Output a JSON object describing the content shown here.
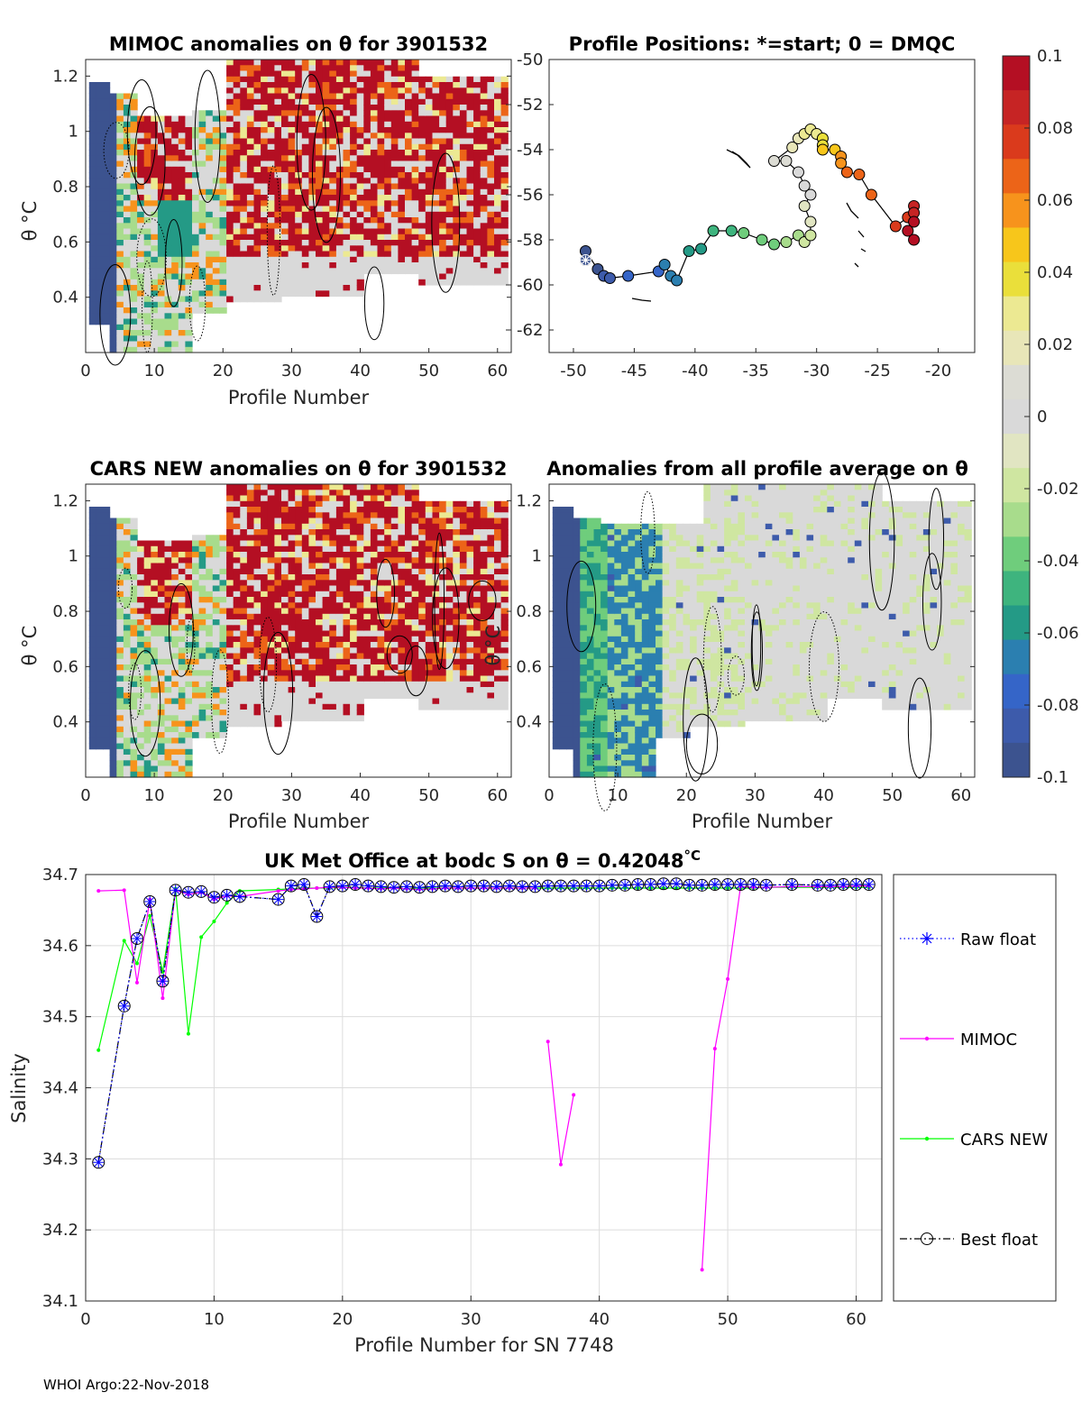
{
  "panels": {
    "mimoc": {
      "title": "MIMOC anomalies on θ  for 3901532",
      "ylabel": "θ °C",
      "xlabel": "Profile Number"
    },
    "positions": {
      "title": "Profile Positions: *=start; 0 = DMQC"
    },
    "cars": {
      "title": "CARS NEW anomalies on θ for 3901532",
      "ylabel": "θ °C",
      "xlabel": "Profile Number"
    },
    "average": {
      "title": "Anomalies from all profile average on θ",
      "ylabel": "θ °C",
      "xlabel": "Profile Number"
    }
  },
  "anomaly_ticks": {
    "profile_x": [
      "0",
      "10",
      "20",
      "30",
      "40",
      "50",
      "60"
    ],
    "theta_y": [
      "1.2",
      "1",
      "0.8",
      "0.6",
      "0.4"
    ],
    "lat_y": [
      "-50",
      "-52",
      "-54",
      "-56",
      "-58",
      "-60",
      "-62"
    ],
    "lon_x": [
      "-50",
      "-45",
      "-40",
      "-35",
      "-30",
      "-25",
      "-20"
    ]
  },
  "colorbar": {
    "labels": [
      "0.1",
      "0.08",
      "0.06",
      "0.04",
      "0.02",
      "0",
      "-0.02",
      "-0.04",
      "-0.06",
      "-0.08",
      "-0.1"
    ],
    "colors": [
      "#b40f23",
      "#c62424",
      "#da3a1c",
      "#ec6418",
      "#f7931c",
      "#f7c61b",
      "#eadf3a",
      "#ece992",
      "#e8e6b8",
      "#dcdcd4",
      "#d9d9d9",
      "#e1e5c2",
      "#cfe6a1",
      "#a8dc8c",
      "#6fcd7c",
      "#3eb47e",
      "#249a86",
      "#2b7fb0",
      "#3565c8",
      "#3d5bab",
      "#3c538f"
    ]
  },
  "chart_data": [
    {
      "type": "heatmap",
      "title": "MIMOC anomalies on θ  for 3901532",
      "xlabel": "Profile Number",
      "ylabel": "θ °C",
      "xlim": [
        0,
        62
      ],
      "ylim": [
        0.2,
        1.26
      ],
      "clim": [
        -0.1,
        0.1
      ],
      "right_axis_ylim": [
        -63,
        -50
      ]
    },
    {
      "type": "scatter",
      "title": "Profile Positions: *=start; 0 = DMQC",
      "xlim": [
        -52,
        -17
      ],
      "ylim": [
        -63,
        -50
      ],
      "x": [
        -49,
        -49,
        -48,
        -47.5,
        -47,
        -45.5,
        -43,
        -42.5,
        -42,
        -41.5,
        -40.5,
        -39.5,
        -38.5,
        -37,
        -36,
        -34.5,
        -33.5,
        -32.5,
        -31.5,
        -31,
        -30.5,
        -30.5,
        -31,
        -30.5,
        -31,
        -31.5,
        -32.5,
        -33.5,
        -32,
        -31.5,
        -31,
        -30.5,
        -30,
        -29.5,
        -29.5,
        -29.5,
        -28.5,
        -28,
        -28,
        -27.5,
        -26.5,
        -25.5,
        -23.5,
        -22.5,
        -22,
        -22,
        -22,
        -22.5,
        -22
      ],
      "y": [
        -58.9,
        -58.5,
        -59.3,
        -59.6,
        -59.7,
        -59.6,
        -59.4,
        -59.1,
        -59.6,
        -59.8,
        -58.5,
        -58.4,
        -57.6,
        -57.6,
        -57.7,
        -58.0,
        -58.2,
        -58.1,
        -57.8,
        -58.1,
        -57.8,
        -57.2,
        -56.5,
        -56.0,
        -55.6,
        -55.0,
        -54.5,
        -54.5,
        -53.9,
        -53.5,
        -53.3,
        -53.1,
        -53.3,
        -53.5,
        -53.8,
        -54.0,
        -54.0,
        -54.3,
        -54.6,
        -55.0,
        -55.1,
        -56.0,
        -57.4,
        -57.0,
        -56.5,
        -56.8,
        -57.2,
        -57.6,
        -58.0
      ],
      "start": [
        -49,
        -58.9
      ]
    },
    {
      "type": "heatmap",
      "title": "CARS NEW anomalies on θ for 3901532",
      "xlabel": "Profile Number",
      "ylabel": "θ °C",
      "xlim": [
        0,
        62
      ],
      "ylim": [
        0.2,
        1.26
      ],
      "clim": [
        -0.1,
        0.1
      ]
    },
    {
      "type": "heatmap",
      "title": "Anomalies from all profile average on θ",
      "xlabel": "Profile Number",
      "ylabel": "θ °C",
      "xlim": [
        0,
        62
      ],
      "ylim": [
        0.2,
        1.26
      ],
      "clim": [
        -0.1,
        0.1
      ]
    },
    {
      "type": "line",
      "title": "UK Met Office at bodc S on θ = 0.42048",
      "title_unit": "°C",
      "xlabel": "Profile Number for SN 7748",
      "ylabel": "Salinity",
      "xlim": [
        0,
        62
      ],
      "ylim": [
        34.1,
        34.7
      ],
      "xticks": [
        "0",
        "10",
        "20",
        "30",
        "40",
        "50",
        "60"
      ],
      "yticks": [
        "34.7",
        "34.6",
        "34.5",
        "34.4",
        "34.3",
        "34.2",
        "34.1"
      ],
      "series": [
        {
          "name": "Raw float",
          "color": "#0000ff",
          "style": "dotted",
          "marker": "star",
          "x": [
            1,
            3,
            4,
            5,
            6,
            7,
            8,
            9,
            10,
            11,
            12,
            15,
            16,
            17,
            18,
            19,
            20,
            21,
            22,
            23,
            24,
            25,
            26,
            27,
            28,
            29,
            30,
            31,
            32,
            33,
            34,
            35,
            36,
            37,
            38,
            39,
            40,
            41,
            42,
            43,
            44,
            45,
            46,
            47,
            48,
            49,
            50,
            51,
            52,
            53,
            55,
            57,
            58,
            59,
            60,
            61
          ],
          "y": [
            34.295,
            34.515,
            34.61,
            34.662,
            34.55,
            34.678,
            34.675,
            34.676,
            34.668,
            34.671,
            34.669,
            34.665,
            34.684,
            34.686,
            34.641,
            34.683,
            34.684,
            34.686,
            34.684,
            34.683,
            34.682,
            34.683,
            34.682,
            34.683,
            34.684,
            34.683,
            34.684,
            34.684,
            34.683,
            34.684,
            34.683,
            34.683,
            34.684,
            34.684,
            34.684,
            34.684,
            34.684,
            34.685,
            34.685,
            34.686,
            34.686,
            34.687,
            34.687,
            34.685,
            34.685,
            34.686,
            34.686,
            34.686,
            34.686,
            34.685,
            34.686,
            34.685,
            34.685,
            34.686,
            34.686,
            34.686
          ]
        },
        {
          "name": "MIMOC",
          "color": "#ff00ff",
          "style": "solid",
          "marker": "dot",
          "x": [
            1,
            3,
            4,
            5,
            6,
            7,
            8,
            9,
            10,
            11,
            12,
            15,
            16,
            17,
            18,
            19,
            20,
            21,
            22,
            23,
            24,
            25,
            26,
            27,
            28,
            29,
            30,
            31,
            32,
            33,
            34,
            35,
            null,
            36,
            37,
            38,
            null,
            48,
            49,
            50,
            51,
            52,
            53,
            55,
            57,
            58,
            59,
            60,
            61
          ],
          "y": [
            34.677,
            34.678,
            34.548,
            34.665,
            34.526,
            34.678,
            34.672,
            34.675,
            34.665,
            34.67,
            34.669,
            34.677,
            34.679,
            34.68,
            34.681,
            34.682,
            34.682,
            34.681,
            34.681,
            34.68,
            34.681,
            34.68,
            34.679,
            34.68,
            34.681,
            34.681,
            34.681,
            34.681,
            34.681,
            34.681,
            34.681,
            34.681,
            null,
            34.465,
            34.292,
            34.39,
            null,
            34.144,
            34.455,
            34.553,
            34.683,
            34.682,
            34.682,
            34.683,
            34.683,
            34.683,
            34.683,
            34.684,
            34.684
          ]
        },
        {
          "name": "CARS NEW",
          "color": "#00ff00",
          "style": "solid",
          "marker": "dot",
          "x": [
            1,
            3,
            4,
            5,
            6,
            7,
            8,
            9,
            10,
            11,
            12,
            15,
            16,
            17,
            18,
            19,
            20,
            21,
            22,
            23,
            24,
            25,
            26,
            27,
            28,
            29,
            30,
            31,
            32,
            33,
            34,
            35,
            36,
            37,
            38,
            39,
            40,
            41,
            42,
            43,
            44,
            45,
            46,
            47,
            48,
            49,
            50,
            51,
            52,
            53,
            55,
            57,
            58,
            59,
            60,
            61
          ],
          "y": [
            34.453,
            34.607,
            34.575,
            34.642,
            34.563,
            34.68,
            34.476,
            34.612,
            34.634,
            34.66,
            34.677,
            34.679,
            34.68,
            34.681,
            34.681,
            34.681,
            34.682,
            34.682,
            34.681,
            34.681,
            34.681,
            34.68,
            34.681,
            34.681,
            34.681,
            34.681,
            34.681,
            34.681,
            34.681,
            34.681,
            34.681,
            34.681,
            34.681,
            34.681,
            34.681,
            34.681,
            34.681,
            34.681,
            34.681,
            34.681,
            34.681,
            34.681,
            34.681,
            34.681,
            34.681,
            34.681,
            34.681,
            34.681,
            34.681,
            34.682,
            34.682,
            34.682,
            34.682,
            34.682,
            34.682,
            34.682
          ]
        },
        {
          "name": "Best float",
          "color": "#000000",
          "style": "dashdot",
          "marker": "circle",
          "x": [
            1,
            3,
            4,
            5,
            6,
            7,
            8,
            9,
            10,
            11,
            12,
            15,
            16,
            17,
            18,
            19,
            20,
            21,
            22,
            23,
            24,
            25,
            26,
            27,
            28,
            29,
            30,
            31,
            32,
            33,
            34,
            35,
            36,
            37,
            38,
            39,
            40,
            41,
            42,
            43,
            44,
            45,
            46,
            47,
            48,
            49,
            50,
            51,
            52,
            53,
            55,
            57,
            58,
            59,
            60,
            61
          ],
          "y": [
            34.295,
            34.515,
            34.61,
            34.662,
            34.55,
            34.678,
            34.675,
            34.676,
            34.668,
            34.671,
            34.669,
            34.665,
            34.684,
            34.686,
            34.641,
            34.683,
            34.684,
            34.686,
            34.684,
            34.683,
            34.682,
            34.683,
            34.682,
            34.683,
            34.684,
            34.683,
            34.684,
            34.684,
            34.683,
            34.684,
            34.683,
            34.683,
            34.684,
            34.684,
            34.684,
            34.684,
            34.684,
            34.685,
            34.685,
            34.686,
            34.686,
            34.687,
            34.687,
            34.685,
            34.685,
            34.686,
            34.686,
            34.686,
            34.686,
            34.685,
            34.686,
            34.685,
            34.685,
            34.686,
            34.686,
            34.686
          ]
        }
      ]
    }
  ],
  "legend": [
    "Raw float",
    "MIMOC",
    "CARS NEW",
    "Best float"
  ],
  "footer": "WHOI Argo:22-Nov-2018"
}
